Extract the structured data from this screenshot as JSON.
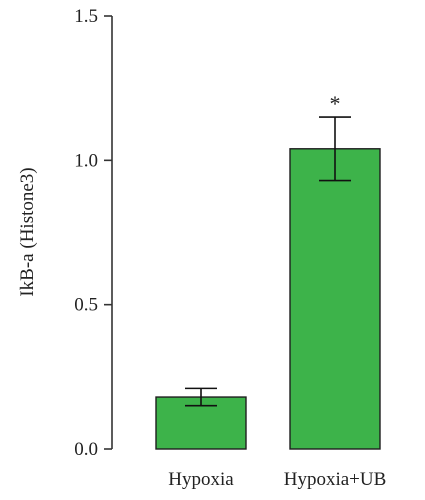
{
  "chart_data": {
    "type": "bar",
    "title": "",
    "xlabel": "",
    "ylabel": "IkB-a (Histone3)",
    "ylim": [
      0,
      1.5
    ],
    "yticks": [
      "0.0",
      "0.5",
      "1.0",
      "1.5"
    ],
    "ytick_values": [
      0,
      0.5,
      1.0,
      1.5
    ],
    "categories": [
      "Hypoxia",
      "Hypoxia+UB"
    ],
    "values": [
      0.18,
      1.04
    ],
    "error": [
      0.03,
      0.11
    ],
    "annotations": [
      "",
      "*"
    ],
    "grid": false,
    "legend": "none",
    "bar_color": "#3db34a"
  }
}
